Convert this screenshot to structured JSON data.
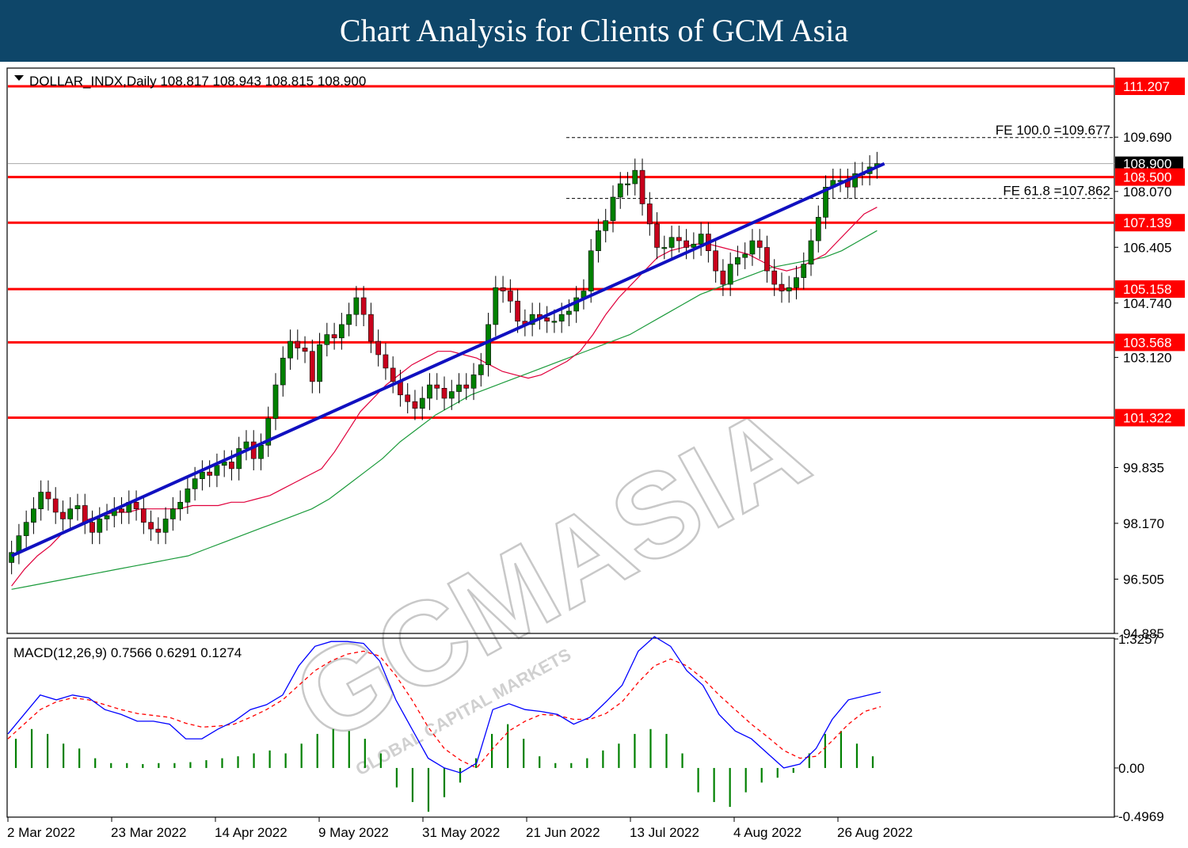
{
  "banner": {
    "title": "Chart Analysis for Clients of GCM Asia"
  },
  "header_label": "DOLLAR_INDX,Daily  108.817 108.943 108.815 108.900",
  "macd_label": "MACD(12,26,9) 0.7566 0.6291 0.1274",
  "watermark": {
    "main": "GCMASIA",
    "sub": "GLOBAL CAPITAL MARKETS"
  },
  "colors": {
    "up": "#008000",
    "down": "#c8001c",
    "ma_fast": "#e0003c",
    "ma_slow": "#1a9a3a",
    "trend": "#1010c0",
    "level": "#ff0000",
    "macd": "#0000ff",
    "signal": "#ff0000",
    "hist": "#008000",
    "banner": "#0e4669"
  },
  "chart_data": {
    "type": "candlestick",
    "symbol": "DOLLAR_INDX",
    "timeframe": "Daily",
    "ohlc": {
      "open": 108.817,
      "high": 108.943,
      "low": 108.815,
      "close": 108.9
    },
    "current_price": 108.9,
    "ylim": [
      94.885,
      111.75
    ],
    "y_ticks": [
      "109.690",
      "108.070",
      "106.405",
      "104.740",
      "103.120",
      "99.835",
      "98.170",
      "96.505",
      "94.885"
    ],
    "x_ticks": [
      "2 Mar 2022",
      "23 Mar 2022",
      "14 Apr 2022",
      "9 May 2022",
      "31 May 2022",
      "21 Jun 2022",
      "13 Jul 2022",
      "4 Aug 2022",
      "26 Aug 2022"
    ],
    "horizontal_levels": [
      "111.207",
      "108.500",
      "107.139",
      "105.158",
      "103.568",
      "101.322"
    ],
    "fibonacci": [
      {
        "label": "FE 100.0 =109.677",
        "value": 109.677
      },
      {
        "label": "FE 61.8 =107.862",
        "value": 107.862
      }
    ],
    "closes": [
      97.3,
      97.8,
      98.2,
      98.6,
      99.1,
      98.9,
      98.5,
      98.3,
      98.6,
      98.7,
      98.2,
      97.9,
      98.3,
      98.4,
      98.6,
      98.5,
      98.8,
      98.6,
      98.2,
      98.0,
      97.9,
      98.3,
      98.6,
      98.8,
      99.2,
      99.5,
      99.7,
      99.6,
      99.9,
      100.0,
      99.8,
      100.4,
      100.6,
      100.1,
      100.5,
      101.3,
      102.3,
      103.1,
      103.6,
      103.4,
      103.3,
      102.4,
      103.5,
      103.8,
      103.7,
      104.1,
      104.4,
      104.9,
      104.4,
      103.6,
      103.2,
      102.8,
      102.4,
      102.0,
      101.8,
      101.6,
      101.9,
      102.3,
      102.2,
      101.9,
      102.1,
      102.3,
      102.2,
      102.6,
      102.9,
      104.1,
      105.2,
      105.1,
      104.8,
      104.2,
      104.1,
      104.4,
      104.3,
      104.2,
      104.2,
      104.4,
      104.5,
      104.9,
      105.1,
      106.3,
      106.9,
      107.2,
      107.9,
      108.3,
      108.3,
      108.7,
      107.7,
      107.1,
      106.4,
      106.4,
      106.7,
      106.6,
      106.4,
      106.5,
      106.8,
      106.3,
      105.7,
      105.3,
      105.9,
      106.1,
      106.2,
      106.6,
      106.4,
      105.7,
      105.3,
      105.1,
      105.2,
      105.5,
      105.9,
      106.6,
      107.3,
      108.2,
      108.4,
      108.4,
      108.2,
      108.6,
      108.6,
      108.8,
      108.9
    ],
    "ma_fast": {
      "start": 0,
      "values": [
        96.3,
        96.8,
        97.2,
        97.5,
        97.9,
        98.1,
        98.3,
        98.4,
        98.5,
        98.5,
        98.6,
        98.6,
        98.6,
        98.6,
        98.7,
        98.7,
        98.7,
        98.8,
        98.8,
        98.9,
        99.0,
        99.2,
        99.4,
        99.6,
        99.8,
        100.3,
        100.9,
        101.5,
        101.9,
        102.3,
        102.6,
        102.9,
        103.1,
        103.3,
        103.3,
        103.2,
        103.1,
        102.9,
        102.7,
        102.6,
        102.5,
        102.6,
        102.8,
        103.0,
        103.3,
        103.8,
        104.4,
        104.9,
        105.3,
        105.7,
        106.1,
        106.3,
        106.4,
        106.5,
        106.5,
        106.4,
        106.3,
        106.2,
        106.0,
        105.8,
        105.7,
        105.8,
        106.0,
        106.2,
        106.6,
        107.0,
        107.4,
        107.6
      ]
    },
    "ma_slow": {
      "start": 0,
      "values": [
        96.2,
        96.3,
        96.4,
        96.5,
        96.6,
        96.7,
        96.8,
        96.9,
        97.0,
        97.1,
        97.2,
        97.4,
        97.6,
        97.8,
        98.0,
        98.2,
        98.4,
        98.6,
        98.9,
        99.3,
        99.7,
        100.1,
        100.6,
        101.0,
        101.4,
        101.7,
        102.0,
        102.2,
        102.4,
        102.6,
        102.8,
        103.0,
        103.2,
        103.4,
        103.6,
        103.8,
        104.1,
        104.4,
        104.7,
        105.0,
        105.2,
        105.4,
        105.6,
        105.8,
        105.9,
        106.0,
        106.1,
        106.3,
        106.6,
        106.9
      ]
    },
    "trendline": {
      "start": [
        0,
        97.2
      ],
      "end": [
        119,
        108.9
      ]
    },
    "macd": {
      "ylim": [
        -0.4969,
        1.3257
      ],
      "y_ticks": [
        "1.3257",
        "0.00",
        "-0.4969"
      ],
      "macd_value": 0.7566,
      "signal_value": 0.6291,
      "histogram_value": 0.1274,
      "macd_line": [
        0.35,
        0.55,
        0.75,
        0.7,
        0.75,
        0.72,
        0.6,
        0.55,
        0.48,
        0.48,
        0.45,
        0.3,
        0.3,
        0.4,
        0.48,
        0.6,
        0.65,
        0.75,
        1.05,
        1.25,
        1.3,
        1.3,
        1.28,
        1.1,
        0.7,
        0.4,
        0.1,
        0.0,
        -0.05,
        0.05,
        0.6,
        0.66,
        0.6,
        0.58,
        0.55,
        0.45,
        0.52,
        0.68,
        0.85,
        1.2,
        1.35,
        1.25,
        1.0,
        0.85,
        0.55,
        0.38,
        0.3,
        0.15,
        0.0,
        0.04,
        0.2,
        0.5,
        0.7,
        0.74,
        0.78
      ],
      "signal_line": [
        0.3,
        0.45,
        0.6,
        0.68,
        0.72,
        0.7,
        0.65,
        0.6,
        0.56,
        0.54,
        0.52,
        0.46,
        0.42,
        0.43,
        0.45,
        0.52,
        0.6,
        0.7,
        0.85,
        1.0,
        1.1,
        1.17,
        1.2,
        1.15,
        0.95,
        0.7,
        0.42,
        0.2,
        0.08,
        0.0,
        0.2,
        0.38,
        0.48,
        0.55,
        0.54,
        0.5,
        0.5,
        0.56,
        0.68,
        0.88,
        1.05,
        1.12,
        1.05,
        0.92,
        0.75,
        0.6,
        0.45,
        0.32,
        0.18,
        0.1,
        0.12,
        0.28,
        0.45,
        0.58,
        0.63
      ],
      "histogram": [
        0.3,
        0.4,
        0.35,
        0.25,
        0.2,
        0.1,
        0.05,
        0.05,
        0.04,
        0.05,
        0.05,
        0.06,
        0.08,
        0.1,
        0.12,
        0.15,
        0.18,
        0.15,
        0.25,
        0.35,
        0.4,
        0.38,
        0.3,
        0.15,
        -0.2,
        -0.35,
        -0.45,
        -0.3,
        -0.15,
        0.1,
        0.35,
        0.45,
        0.3,
        0.12,
        0.05,
        0.05,
        0.1,
        0.18,
        0.25,
        0.35,
        0.4,
        0.35,
        0.15,
        -0.25,
        -0.35,
        -0.4,
        -0.25,
        -0.15,
        -0.1,
        -0.05,
        0.15,
        0.35,
        0.38,
        0.25,
        0.12
      ]
    }
  }
}
